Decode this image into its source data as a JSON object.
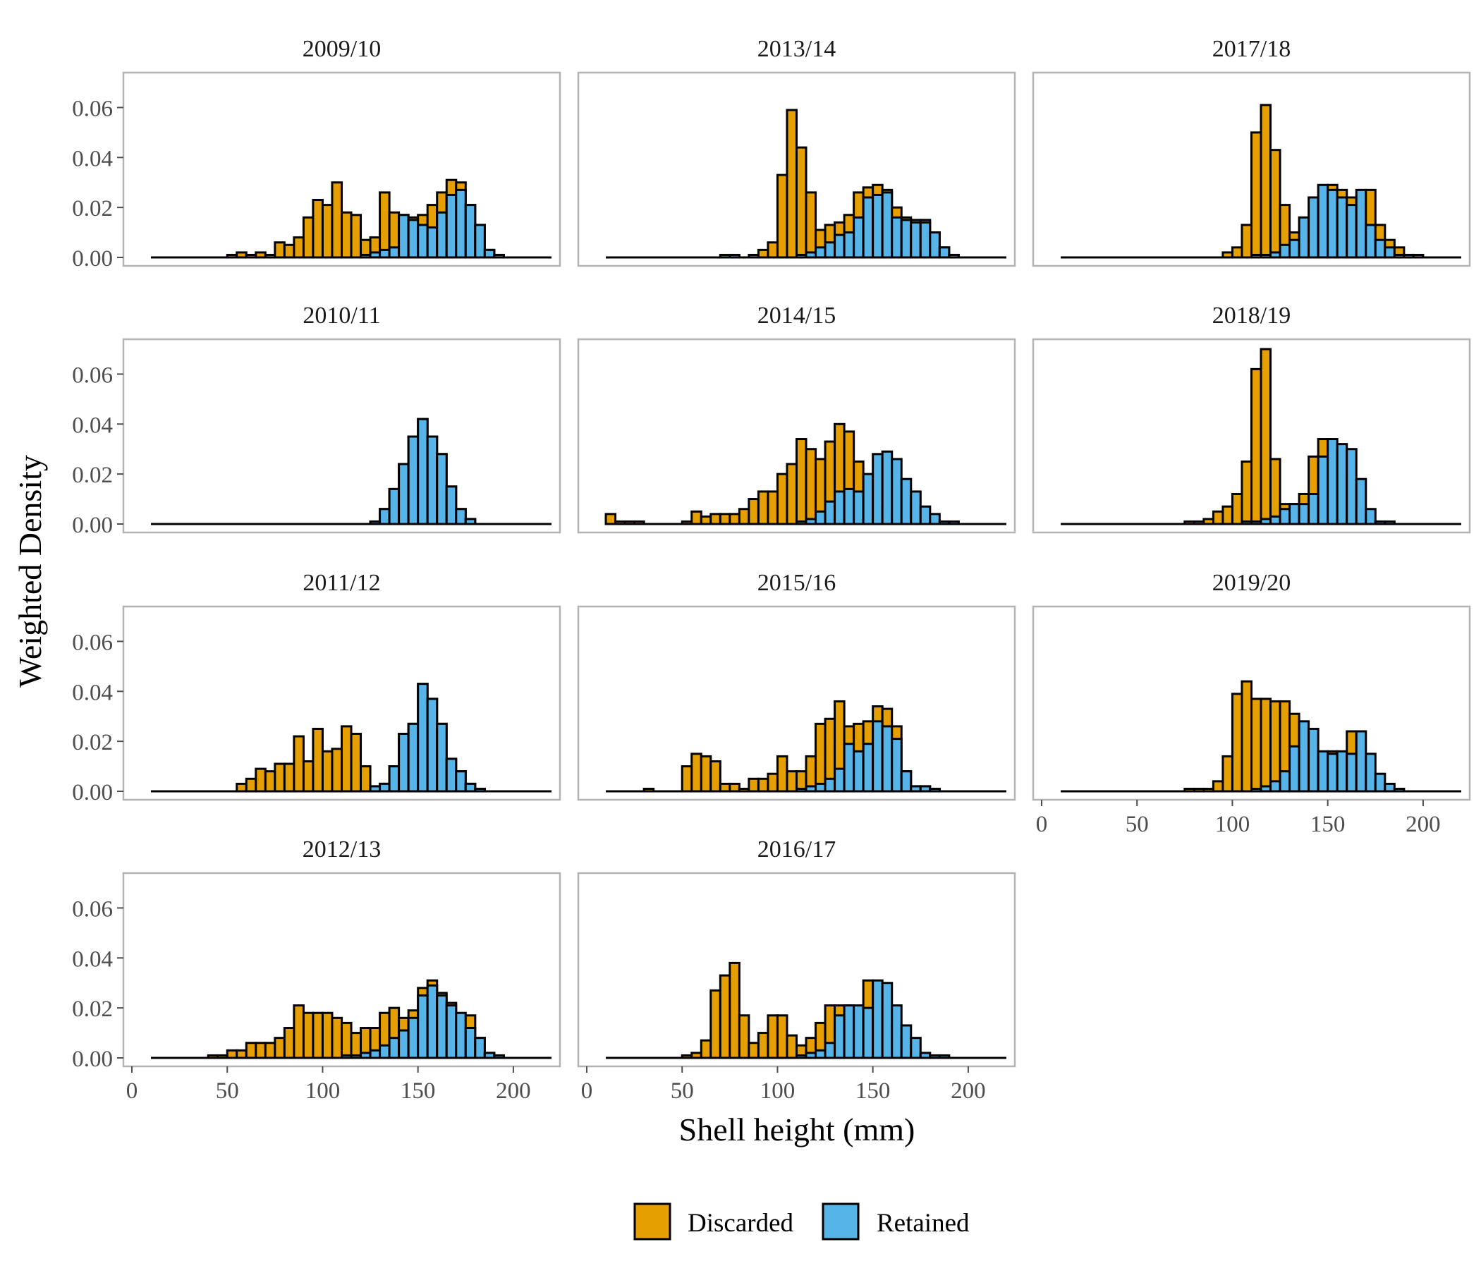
{
  "colors": {
    "discarded": "#E69F00",
    "retained": "#56B4E9",
    "bar_outline": "#000000",
    "panel_border": "#b3b3b3",
    "tick_text": "#4d4d4d"
  },
  "chart_data": {
    "type": "bar",
    "subtype": "faceted stacked histogram",
    "xlabel": "Shell height (mm)",
    "ylabel": "Weighted Density",
    "x_ticks": [
      "0",
      "50",
      "100",
      "150",
      "200"
    ],
    "y_ticks": [
      "0.00",
      "0.02",
      "0.04",
      "0.06"
    ],
    "xlim": [
      0,
      220
    ],
    "ylim": [
      0,
      0.07
    ],
    "bin_width": 5,
    "bins": [
      10,
      15,
      20,
      25,
      30,
      35,
      40,
      45,
      50,
      55,
      60,
      65,
      70,
      75,
      80,
      85,
      90,
      95,
      100,
      105,
      110,
      115,
      120,
      125,
      130,
      135,
      140,
      145,
      150,
      155,
      160,
      165,
      170,
      175,
      180,
      185,
      190,
      195,
      200,
      205,
      210,
      215
    ],
    "legend": {
      "position": "bottom",
      "entries": [
        "Discarded",
        "Retained"
      ]
    },
    "panels": [
      {
        "title": "2009/10",
        "retained": [
          0,
          0,
          0,
          0,
          0,
          0,
          0,
          0,
          0,
          0,
          0,
          0,
          0,
          0,
          0,
          0,
          0,
          0,
          0,
          0,
          0,
          0,
          0.001,
          0.002,
          0.003,
          0.004,
          0.017,
          0.015,
          0.013,
          0.012,
          0.018,
          0.025,
          0.027,
          0.021,
          0.013,
          0.003,
          0.001,
          0,
          0,
          0,
          0,
          0
        ],
        "discarded": [
          0,
          0,
          0,
          0,
          0,
          0,
          0,
          0,
          0.001,
          0.002,
          0.001,
          0.002,
          0.001,
          0.006,
          0.005,
          0.008,
          0.016,
          0.023,
          0.021,
          0.03,
          0.018,
          0.017,
          0.007,
          0.008,
          0.026,
          0.018,
          0.017,
          0.016,
          0.017,
          0.021,
          0.026,
          0.031,
          0.03,
          0.021,
          0.013,
          0.003,
          0.001,
          0,
          0,
          0,
          0,
          0
        ]
      },
      {
        "title": "2010/11",
        "retained": [
          0,
          0,
          0,
          0,
          0,
          0,
          0,
          0,
          0,
          0,
          0,
          0,
          0,
          0,
          0,
          0,
          0,
          0,
          0,
          0,
          0,
          0,
          0,
          0.001,
          0.006,
          0.014,
          0.024,
          0.035,
          0.042,
          0.035,
          0.028,
          0.015,
          0.006,
          0.002,
          0,
          0,
          0,
          0,
          0,
          0,
          0,
          0
        ],
        "discarded": [
          0,
          0,
          0,
          0,
          0,
          0,
          0,
          0,
          0,
          0,
          0,
          0,
          0,
          0,
          0,
          0,
          0,
          0,
          0,
          0,
          0,
          0,
          0,
          0.001,
          0.006,
          0.014,
          0.024,
          0.035,
          0.042,
          0.035,
          0.028,
          0.015,
          0.006,
          0.002,
          0,
          0,
          0,
          0,
          0,
          0,
          0,
          0
        ]
      },
      {
        "title": "2011/12",
        "retained": [
          0,
          0,
          0,
          0,
          0,
          0,
          0,
          0,
          0,
          0,
          0,
          0,
          0,
          0,
          0,
          0,
          0,
          0,
          0,
          0,
          0,
          0,
          0,
          0.002,
          0.003,
          0.01,
          0.023,
          0.027,
          0.043,
          0.037,
          0.027,
          0.013,
          0.008,
          0.003,
          0.001,
          0,
          0,
          0,
          0,
          0,
          0,
          0
        ],
        "discarded": [
          0,
          0,
          0,
          0,
          0,
          0,
          0,
          0,
          0,
          0.003,
          0.005,
          0.009,
          0.008,
          0.011,
          0.011,
          0.022,
          0.012,
          0.025,
          0.016,
          0.017,
          0.026,
          0.023,
          0.01,
          0.002,
          0.003,
          0.01,
          0.023,
          0.027,
          0.043,
          0.037,
          0.027,
          0.013,
          0.008,
          0.003,
          0.001,
          0,
          0,
          0,
          0,
          0,
          0,
          0
        ]
      },
      {
        "title": "2012/13",
        "retained": [
          0,
          0,
          0,
          0,
          0,
          0,
          0,
          0,
          0,
          0,
          0,
          0,
          0,
          0,
          0,
          0,
          0,
          0,
          0,
          0,
          0.001,
          0.001,
          0.002,
          0.003,
          0.005,
          0.008,
          0.011,
          0.016,
          0.025,
          0.029,
          0.025,
          0.021,
          0.018,
          0.012,
          0.008,
          0.002,
          0.001,
          0,
          0,
          0,
          0,
          0
        ],
        "discarded": [
          0,
          0,
          0,
          0,
          0,
          0,
          0.001,
          0.001,
          0.003,
          0.003,
          0.006,
          0.006,
          0.006,
          0.008,
          0.012,
          0.021,
          0.018,
          0.018,
          0.018,
          0.016,
          0.014,
          0.01,
          0.012,
          0.012,
          0.018,
          0.02,
          0.016,
          0.019,
          0.028,
          0.031,
          0.026,
          0.022,
          0.016,
          0.017,
          0.008,
          0.002,
          0.001,
          0,
          0,
          0,
          0,
          0
        ]
      },
      {
        "title": "2013/14",
        "retained": [
          0,
          0,
          0,
          0,
          0,
          0,
          0,
          0,
          0,
          0,
          0,
          0,
          0,
          0,
          0,
          0,
          0,
          0,
          0,
          0,
          0.001,
          0.002,
          0.004,
          0.006,
          0.009,
          0.01,
          0.016,
          0.024,
          0.025,
          0.026,
          0.016,
          0.015,
          0.014,
          0.014,
          0.01,
          0.004,
          0.001,
          0,
          0,
          0,
          0,
          0
        ],
        "discarded": [
          0,
          0,
          0,
          0,
          0,
          0,
          0,
          0,
          0,
          0,
          0,
          0,
          0.001,
          0.001,
          0,
          0.001,
          0.003,
          0.006,
          0.033,
          0.059,
          0.044,
          0.026,
          0.011,
          0.013,
          0.014,
          0.017,
          0.026,
          0.028,
          0.029,
          0.027,
          0.02,
          0.016,
          0.015,
          0.015,
          0.01,
          0.004,
          0.001,
          0,
          0,
          0,
          0,
          0
        ]
      },
      {
        "title": "2014/15",
        "retained": [
          0,
          0,
          0,
          0,
          0,
          0,
          0,
          0,
          0,
          0,
          0,
          0,
          0,
          0,
          0,
          0,
          0,
          0,
          0,
          0,
          0.001,
          0.002,
          0.005,
          0.009,
          0.013,
          0.014,
          0.013,
          0.02,
          0.028,
          0.029,
          0.026,
          0.018,
          0.013,
          0.007,
          0.004,
          0.001,
          0.001,
          0,
          0,
          0,
          0,
          0
        ],
        "discarded": [
          0.004,
          0.001,
          0.001,
          0.001,
          0,
          0,
          0,
          0,
          0.001,
          0.005,
          0.003,
          0.004,
          0.004,
          0.004,
          0.006,
          0.01,
          0.013,
          0.013,
          0.02,
          0.024,
          0.034,
          0.03,
          0.026,
          0.033,
          0.04,
          0.037,
          0.025,
          0.018,
          0.013,
          0.007,
          0.004,
          0.001,
          0.001,
          0,
          0,
          0,
          0,
          0,
          0,
          0,
          0,
          0
        ]
      },
      {
        "title": "2015/16",
        "retained": [
          0,
          0,
          0,
          0,
          0,
          0,
          0,
          0,
          0,
          0,
          0,
          0,
          0,
          0,
          0,
          0,
          0,
          0,
          0,
          0,
          0.001,
          0.002,
          0.003,
          0.005,
          0.009,
          0.019,
          0.016,
          0.019,
          0.028,
          0.026,
          0.021,
          0.008,
          0.002,
          0.002,
          0.001,
          0,
          0,
          0,
          0,
          0,
          0,
          0
        ],
        "discarded": [
          0,
          0,
          0,
          0,
          0.001,
          0,
          0,
          0,
          0.01,
          0.015,
          0.014,
          0.012,
          0.003,
          0.003,
          0.001,
          0.005,
          0.005,
          0.007,
          0.014,
          0.008,
          0.008,
          0.014,
          0.027,
          0.029,
          0.036,
          0.026,
          0.027,
          0.028,
          0.034,
          0.033,
          0.026,
          0.008,
          0.002,
          0.002,
          0.001,
          0,
          0,
          0,
          0,
          0,
          0,
          0
        ]
      },
      {
        "title": "2016/17",
        "retained": [
          0,
          0,
          0,
          0,
          0,
          0,
          0,
          0,
          0,
          0,
          0,
          0,
          0,
          0,
          0,
          0,
          0,
          0,
          0,
          0,
          0.001,
          0.002,
          0.003,
          0.006,
          0.017,
          0.021,
          0.021,
          0.02,
          0.031,
          0.03,
          0.021,
          0.013,
          0.008,
          0.002,
          0.001,
          0.001,
          0,
          0,
          0,
          0,
          0,
          0
        ],
        "discarded": [
          0,
          0,
          0,
          0,
          0,
          0,
          0,
          0,
          0.001,
          0.002,
          0.007,
          0.027,
          0.033,
          0.038,
          0.017,
          0.006,
          0.01,
          0.017,
          0.017,
          0.009,
          0.005,
          0.008,
          0.014,
          0.021,
          0.021,
          0.021,
          0.02,
          0.031,
          0.03,
          0.021,
          0.013,
          0.008,
          0.002,
          0.001,
          0.001,
          0,
          0,
          0,
          0,
          0,
          0,
          0
        ]
      },
      {
        "title": "2017/18",
        "retained": [
          0,
          0,
          0,
          0,
          0,
          0,
          0,
          0,
          0,
          0,
          0,
          0,
          0,
          0,
          0,
          0,
          0,
          0,
          0,
          0,
          0.001,
          0.001,
          0.002,
          0.005,
          0.007,
          0.016,
          0.024,
          0.029,
          0.027,
          0.024,
          0.021,
          0.027,
          0.013,
          0.007,
          0.004,
          0.001,
          0.001,
          0,
          0,
          0,
          0,
          0
        ],
        "discarded": [
          0,
          0,
          0,
          0,
          0,
          0,
          0,
          0,
          0,
          0,
          0,
          0,
          0,
          0,
          0,
          0,
          0,
          0.002,
          0.004,
          0.013,
          0.05,
          0.061,
          0.043,
          0.021,
          0.01,
          0.007,
          0.016,
          0.024,
          0.029,
          0.027,
          0.024,
          0.021,
          0.027,
          0.013,
          0.007,
          0.004,
          0.001,
          0.001,
          0,
          0,
          0,
          0
        ]
      },
      {
        "title": "2018/19",
        "retained": [
          0,
          0,
          0,
          0,
          0,
          0,
          0,
          0,
          0,
          0,
          0,
          0,
          0,
          0,
          0,
          0,
          0,
          0,
          0,
          0.001,
          0.001,
          0.002,
          0.003,
          0.006,
          0.008,
          0.008,
          0.012,
          0.027,
          0.034,
          0.032,
          0.03,
          0.018,
          0.006,
          0.001,
          0.001,
          0,
          0,
          0,
          0,
          0,
          0,
          0
        ],
        "discarded": [
          0,
          0,
          0,
          0,
          0,
          0,
          0,
          0,
          0,
          0,
          0,
          0,
          0,
          0.001,
          0.001,
          0.002,
          0.005,
          0.007,
          0.012,
          0.025,
          0.062,
          0.07,
          0.026,
          0.008,
          0.008,
          0.012,
          0.027,
          0.034,
          0.032,
          0.03,
          0.018,
          0.006,
          0.001,
          0.001,
          0,
          0,
          0,
          0,
          0,
          0,
          0,
          0
        ]
      },
      {
        "title": "2019/20",
        "retained": [
          0,
          0,
          0,
          0,
          0,
          0,
          0,
          0,
          0,
          0,
          0,
          0,
          0,
          0,
          0,
          0,
          0,
          0,
          0,
          0,
          0.001,
          0.002,
          0.004,
          0.008,
          0.018,
          0.028,
          0.025,
          0.016,
          0.015,
          0.016,
          0.015,
          0.024,
          0.015,
          0.007,
          0.003,
          0.001,
          0,
          0,
          0,
          0,
          0,
          0
        ],
        "discarded": [
          0,
          0,
          0,
          0,
          0,
          0,
          0,
          0,
          0,
          0,
          0,
          0,
          0,
          0.001,
          0.001,
          0.001,
          0.004,
          0.014,
          0.039,
          0.044,
          0.037,
          0.037,
          0.036,
          0.036,
          0.031,
          0.024,
          0.016,
          0.015,
          0.016,
          0.015,
          0.024,
          0.015,
          0.007,
          0.003,
          0.001,
          0,
          0,
          0,
          0,
          0,
          0,
          0
        ]
      }
    ]
  }
}
